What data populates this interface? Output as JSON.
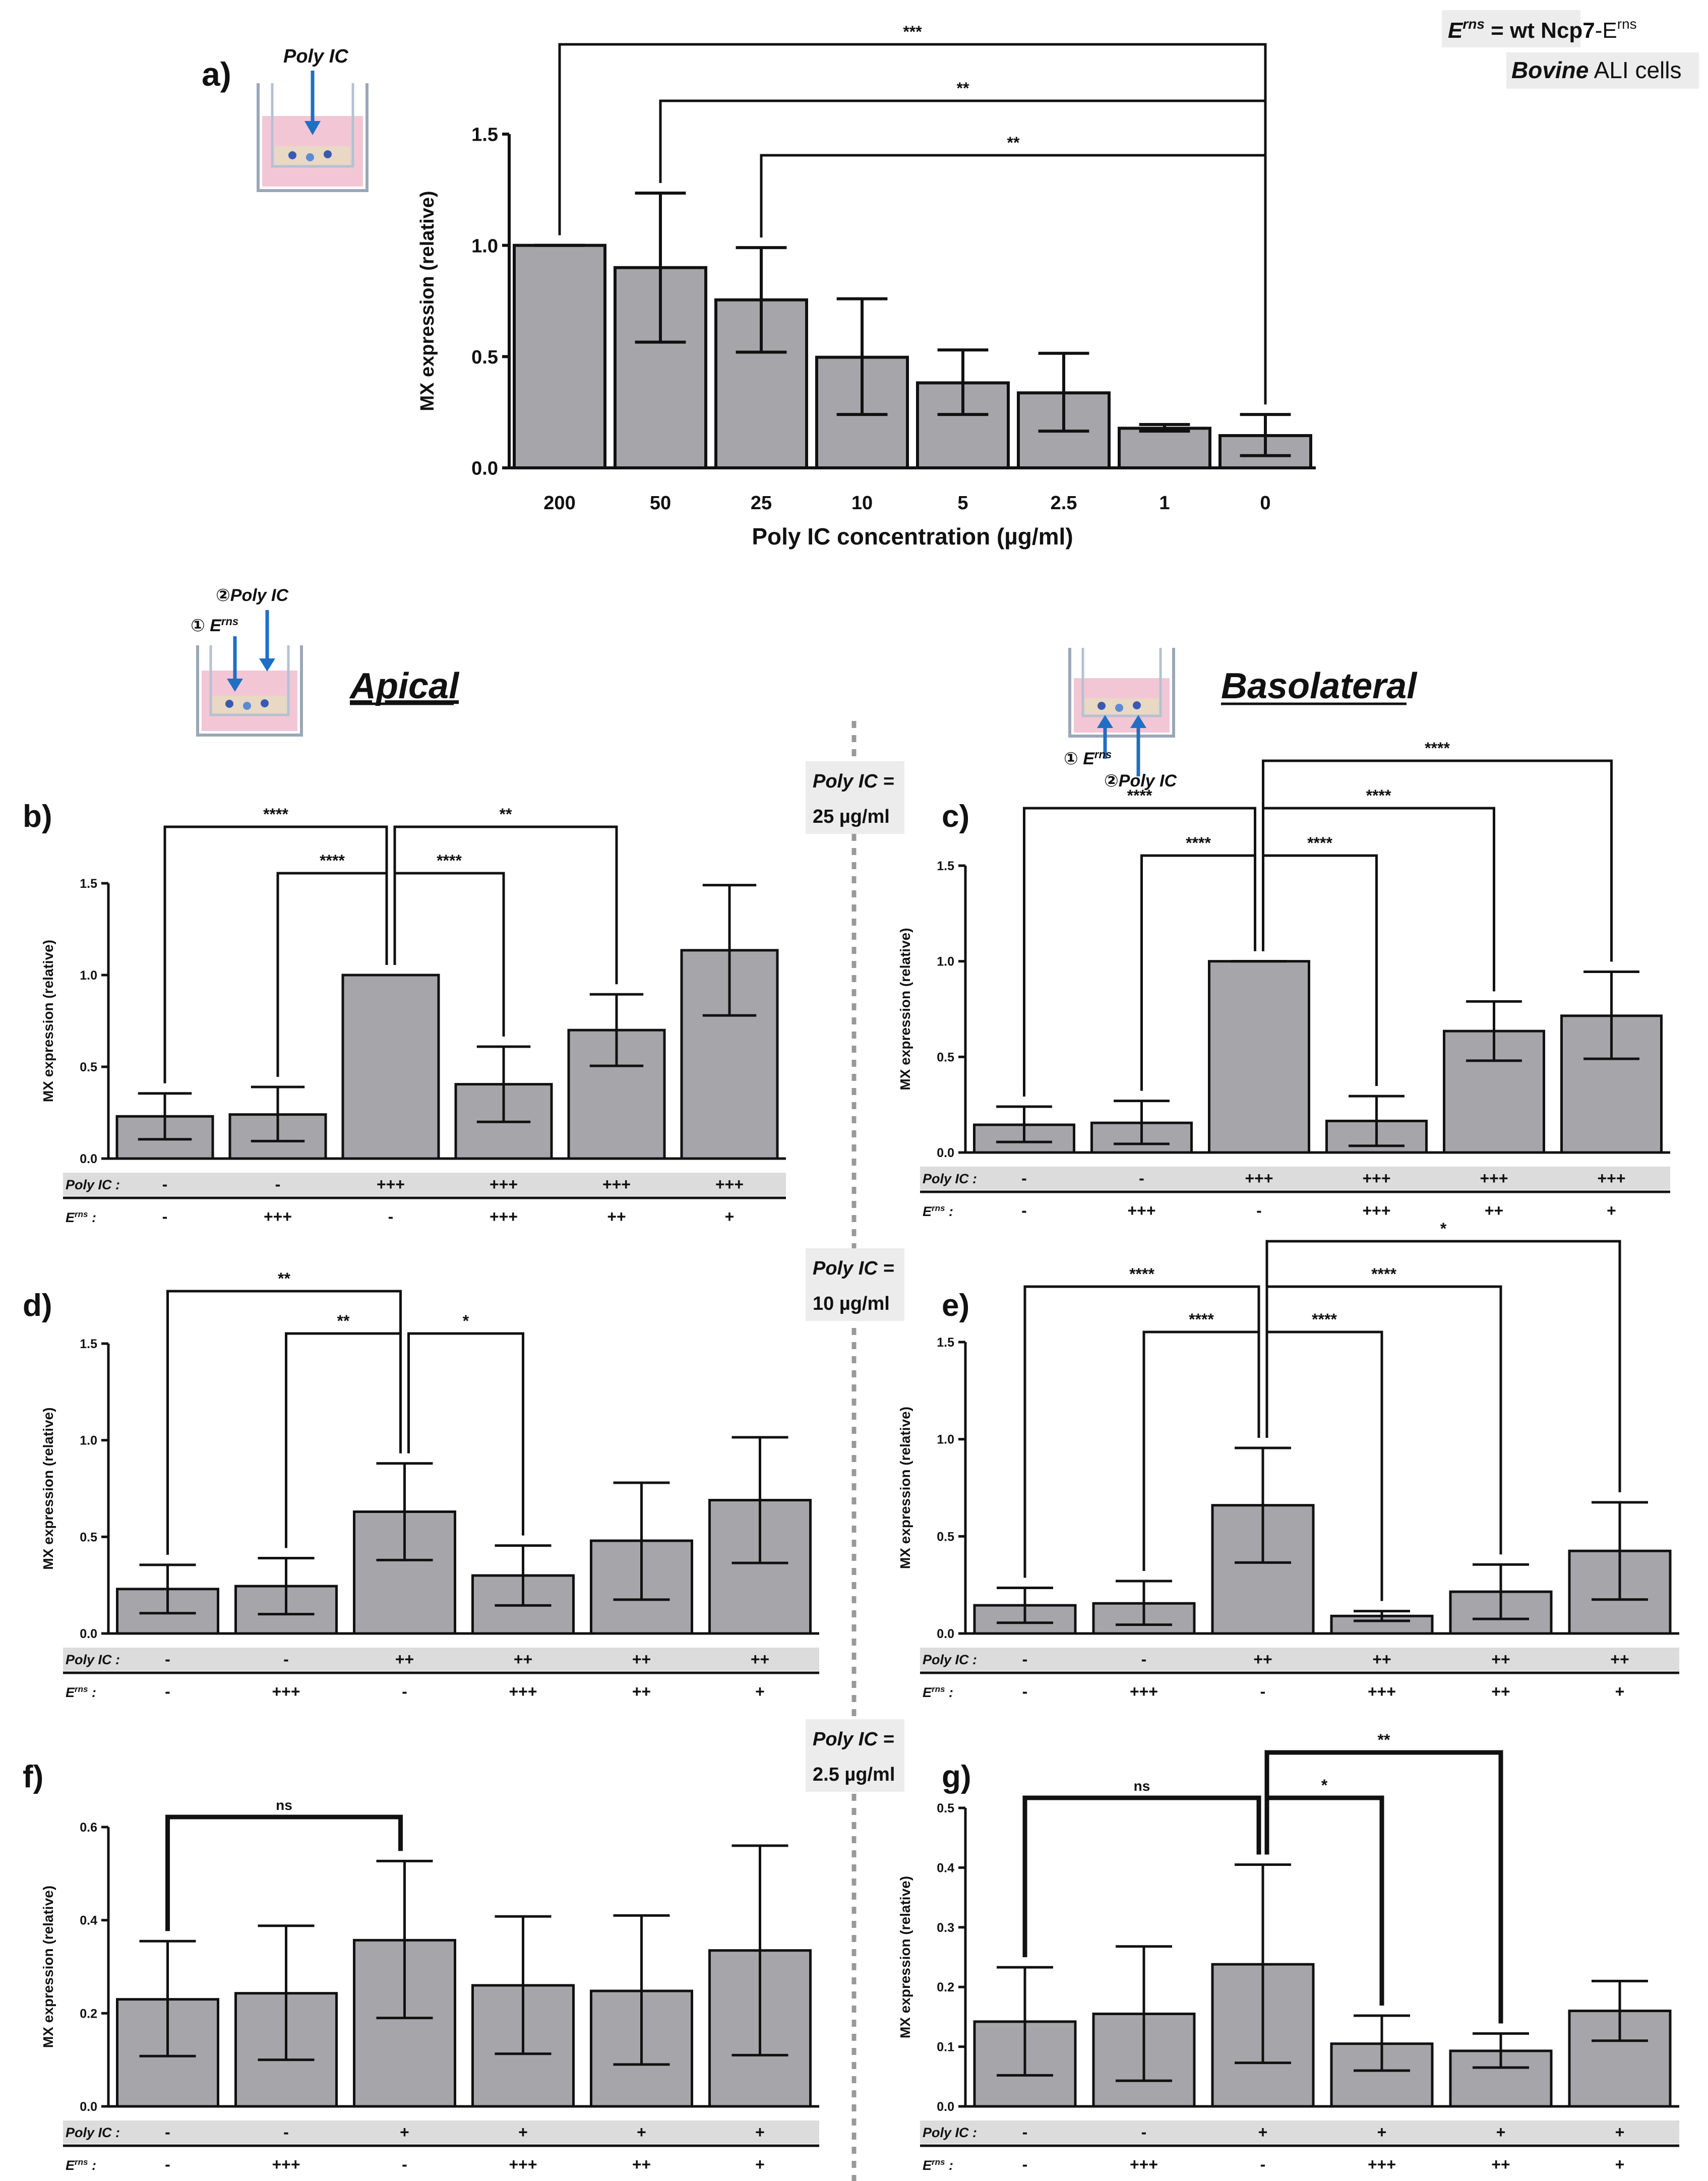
{
  "legend": {
    "erns_line_main": "E",
    "erns_line_sup": "rns",
    "erns_line_eq": " = wt Ncp7",
    "erns_line_dash": "-E",
    "erns_line_sup2": "rns",
    "cells_line_bold": "Bovine",
    "cells_line_rest": " ALI cells"
  },
  "section_titles": {
    "apical": "Apical",
    "basolateral": "Basolateral"
  },
  "schematics": {
    "a_label": "Poly IC",
    "apical_step1": "① E",
    "apical_step1_sup": "rns",
    "apical_step2": "②Poly IC",
    "baso_step1": "① E",
    "baso_step1_sup": "rns",
    "baso_step2": "②Poly IC"
  },
  "concentration_boxes": [
    {
      "l1": "Poly IC =",
      "l2": "25 µg/ml"
    },
    {
      "l1": "Poly IC =",
      "l2": "10 µg/ml"
    },
    {
      "l1": "Poly IC =",
      "l2": "2.5 µg/ml"
    }
  ],
  "row_labels": {
    "polyic": "Poly IC :",
    "erns": "E",
    "erns_sup": "rns",
    "erns_colon": " :"
  },
  "colors": {
    "bar_fill": "#a6a5aa",
    "row_band": "#dcdcdc",
    "arrow_blue": "#1f6fc4",
    "medium_pink": "#f3c6d6"
  },
  "chart_data": [
    {
      "panel": "a)",
      "type": "bar",
      "categories": [
        "200",
        "50",
        "25",
        "10",
        "5",
        "2.5",
        "1",
        "0"
      ],
      "values": [
        1.0,
        0.9,
        0.755,
        0.497,
        0.382,
        0.337,
        0.178,
        0.145
      ],
      "err_high": [
        1.0,
        1.235,
        0.99,
        0.76,
        0.53,
        0.515,
        0.195,
        0.24
      ],
      "err_low": [
        1.0,
        0.565,
        0.52,
        0.24,
        0.24,
        0.165,
        0.165,
        0.055
      ],
      "ylim": [
        0,
        1.5
      ],
      "yticks": [
        "0.0",
        "0.5",
        "1.0",
        "1.5"
      ],
      "ylabel": "MX expression (relative)",
      "xlabel": "Poly IC concentration (µg/ml)",
      "brackets": [
        {
          "from": 0,
          "to": 7,
          "label": "***",
          "level": 3
        },
        {
          "from": 1,
          "to": 7,
          "label": "**",
          "level": 2
        },
        {
          "from": 2,
          "to": 7,
          "label": "**",
          "level": 1
        }
      ]
    },
    {
      "panel": "b)",
      "type": "bar",
      "values": [
        0.23,
        0.24,
        1.0,
        0.405,
        0.7,
        1.135
      ],
      "err_high": [
        0.355,
        0.39,
        1.0,
        0.61,
        0.895,
        1.49
      ],
      "err_low": [
        0.105,
        0.095,
        1.0,
        0.2,
        0.505,
        0.78
      ],
      "ylim": [
        0,
        1.5
      ],
      "yticks": [
        "0.0",
        "0.5",
        "1.0",
        "1.5"
      ],
      "ylabel": "MX expression (relative)",
      "polyic": [
        "-",
        "-",
        "+++",
        "+++",
        "+++",
        "+++"
      ],
      "erns": [
        "-",
        "+++",
        "-",
        "+++",
        "++",
        "+"
      ],
      "brackets": [
        {
          "from": 0,
          "to": 2,
          "label": "****",
          "level": 2
        },
        {
          "from": 1,
          "to": 2,
          "label": "****",
          "level": 1
        },
        {
          "from": 2,
          "to": 3,
          "label": "****",
          "level": 1
        },
        {
          "from": 2,
          "to": 4,
          "label": "**",
          "level": 2
        }
      ]
    },
    {
      "panel": "c)",
      "type": "bar",
      "values": [
        0.145,
        0.155,
        1.0,
        0.165,
        0.635,
        0.715
      ],
      "err_high": [
        0.24,
        0.27,
        1.0,
        0.295,
        0.79,
        0.945
      ],
      "err_low": [
        0.055,
        0.045,
        1.0,
        0.035,
        0.48,
        0.49
      ],
      "ylim": [
        0,
        1.5
      ],
      "yticks": [
        "0.0",
        "0.5",
        "1.0",
        "1.5"
      ],
      "ylabel": "MX expression (relative)",
      "polyic": [
        "-",
        "-",
        "+++",
        "+++",
        "+++",
        "+++"
      ],
      "erns": [
        "-",
        "+++",
        "-",
        "+++",
        "++",
        "+"
      ],
      "brackets": [
        {
          "from": 0,
          "to": 2,
          "label": "****",
          "level": 2
        },
        {
          "from": 1,
          "to": 2,
          "label": "****",
          "level": 1
        },
        {
          "from": 2,
          "to": 3,
          "label": "****",
          "level": 1
        },
        {
          "from": 2,
          "to": 4,
          "label": "****",
          "level": 2
        },
        {
          "from": 2,
          "to": 5,
          "label": "****",
          "level": 3
        }
      ]
    },
    {
      "panel": "d)",
      "type": "bar",
      "values": [
        0.23,
        0.245,
        0.63,
        0.3,
        0.48,
        0.69
      ],
      "err_high": [
        0.355,
        0.39,
        0.88,
        0.455,
        0.78,
        1.015
      ],
      "err_low": [
        0.105,
        0.1,
        0.38,
        0.145,
        0.175,
        0.365
      ],
      "ylim": [
        0,
        1.5
      ],
      "yticks": [
        "0.0",
        "0.5",
        "1.0",
        "1.5"
      ],
      "ylabel": "MX expression (relative)",
      "polyic": [
        "-",
        "-",
        "++",
        "++",
        "++",
        "++"
      ],
      "erns": [
        "-",
        "+++",
        "-",
        "+++",
        "++",
        "+"
      ],
      "brackets": [
        {
          "from": 0,
          "to": 2,
          "label": "**",
          "level": 2
        },
        {
          "from": 1,
          "to": 2,
          "label": "**",
          "level": 1
        },
        {
          "from": 2,
          "to": 3,
          "label": "*",
          "level": 1
        }
      ]
    },
    {
      "panel": "e)",
      "type": "bar",
      "values": [
        0.145,
        0.155,
        0.66,
        0.09,
        0.215,
        0.425
      ],
      "err_high": [
        0.235,
        0.27,
        0.955,
        0.115,
        0.355,
        0.675
      ],
      "err_low": [
        0.055,
        0.045,
        0.365,
        0.065,
        0.075,
        0.175
      ],
      "ylim": [
        0,
        1.5
      ],
      "yticks": [
        "0.0",
        "0.5",
        "1.0",
        "1.5"
      ],
      "ylabel": "MX expression (relative)",
      "polyic": [
        "-",
        "-",
        "++",
        "++",
        "++",
        "++"
      ],
      "erns": [
        "-",
        "+++",
        "-",
        "+++",
        "++",
        "+"
      ],
      "brackets": [
        {
          "from": 0,
          "to": 2,
          "label": "****",
          "level": 2
        },
        {
          "from": 1,
          "to": 2,
          "label": "****",
          "level": 1
        },
        {
          "from": 2,
          "to": 3,
          "label": "****",
          "level": 1
        },
        {
          "from": 2,
          "to": 4,
          "label": "****",
          "level": 2
        },
        {
          "from": 2,
          "to": 5,
          "label": "*",
          "level": 3
        }
      ]
    },
    {
      "panel": "f)",
      "type": "bar",
      "values": [
        0.23,
        0.243,
        0.357,
        0.26,
        0.248,
        0.335
      ],
      "err_high": [
        0.355,
        0.388,
        0.527,
        0.408,
        0.41,
        0.56
      ],
      "err_low": [
        0.108,
        0.1,
        0.19,
        0.113,
        0.09,
        0.11
      ],
      "ylim": [
        0,
        0.6
      ],
      "yticks": [
        "0.0",
        "0.2",
        "0.4",
        "0.6"
      ],
      "ylabel": "MX expression (relative)",
      "polyic": [
        "-",
        "-",
        "+",
        "+",
        "+",
        "+"
      ],
      "erns": [
        "-",
        "+++",
        "-",
        "+++",
        "++",
        "+"
      ],
      "brackets": [
        {
          "from": 0,
          "to": 2,
          "label": "ns",
          "level": 1,
          "thick": true
        }
      ]
    },
    {
      "panel": "g)",
      "type": "bar",
      "values": [
        0.142,
        0.155,
        0.238,
        0.105,
        0.093,
        0.16
      ],
      "err_high": [
        0.233,
        0.268,
        0.405,
        0.152,
        0.122,
        0.21
      ],
      "err_low": [
        0.052,
        0.043,
        0.073,
        0.06,
        0.065,
        0.11
      ],
      "ylim": [
        0,
        0.5
      ],
      "yticks": [
        "0.0",
        "0.1",
        "0.2",
        "0.3",
        "0.4",
        "0.5"
      ],
      "ylabel": "MX expression (relative)",
      "polyic": [
        "-",
        "-",
        "+",
        "+",
        "+",
        "+"
      ],
      "erns": [
        "-",
        "+++",
        "-",
        "+++",
        "++",
        "+"
      ],
      "brackets": [
        {
          "from": 0,
          "to": 2,
          "label": "ns",
          "level": 1,
          "thick": true
        },
        {
          "from": 2,
          "to": 3,
          "label": "*",
          "level": 1,
          "thick": true
        },
        {
          "from": 2,
          "to": 4,
          "label": "**",
          "level": 2,
          "thick": true
        }
      ]
    }
  ]
}
